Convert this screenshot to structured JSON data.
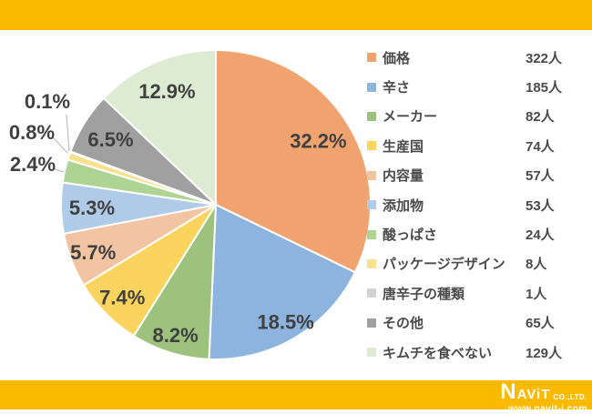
{
  "accent_color": "#FBBA00",
  "chart_data": {
    "type": "pie",
    "title": "",
    "legend_position": "right",
    "direction": "clockwise",
    "start_angle_deg": 0,
    "total": 1000,
    "categories": [
      "価格",
      "辛さ",
      "メーカー",
      "生産国",
      "内容量",
      "添加物",
      "酸っぱさ",
      "パッケージデザイン",
      "唐辛子の種類",
      "その他",
      "キムチを食べない"
    ],
    "values": [
      322,
      185,
      82,
      74,
      57,
      53,
      24,
      8,
      1,
      65,
      129
    ],
    "percent_labels": [
      "32.2%",
      "18.5%",
      "8.2%",
      "7.4%",
      "5.7%",
      "5.3%",
      "2.4%",
      "0.8%",
      "0.1%",
      "6.5%",
      "12.9%"
    ],
    "counts_display": [
      "322人",
      "185人",
      "82人",
      "74人",
      "57人",
      "53人",
      "24人",
      "8人",
      "1人",
      "65人",
      "129人"
    ],
    "colors": [
      "#F0A36E",
      "#8DB4DE",
      "#9CC27E",
      "#FAD45E",
      "#F2C4A2",
      "#AFCBE8",
      "#AED494",
      "#FADF8F",
      "#D3D3D3",
      "#A0A0A0",
      "#DCEBD2"
    ],
    "label_color": "#404040",
    "leader_line_color": "#BFBFBF",
    "slice_border_color": "#FFFFFF"
  },
  "footer": {
    "logo_text": "NAViT",
    "logo_co": "CO.,LTD.",
    "logo_url": "www.navit-j.com"
  }
}
